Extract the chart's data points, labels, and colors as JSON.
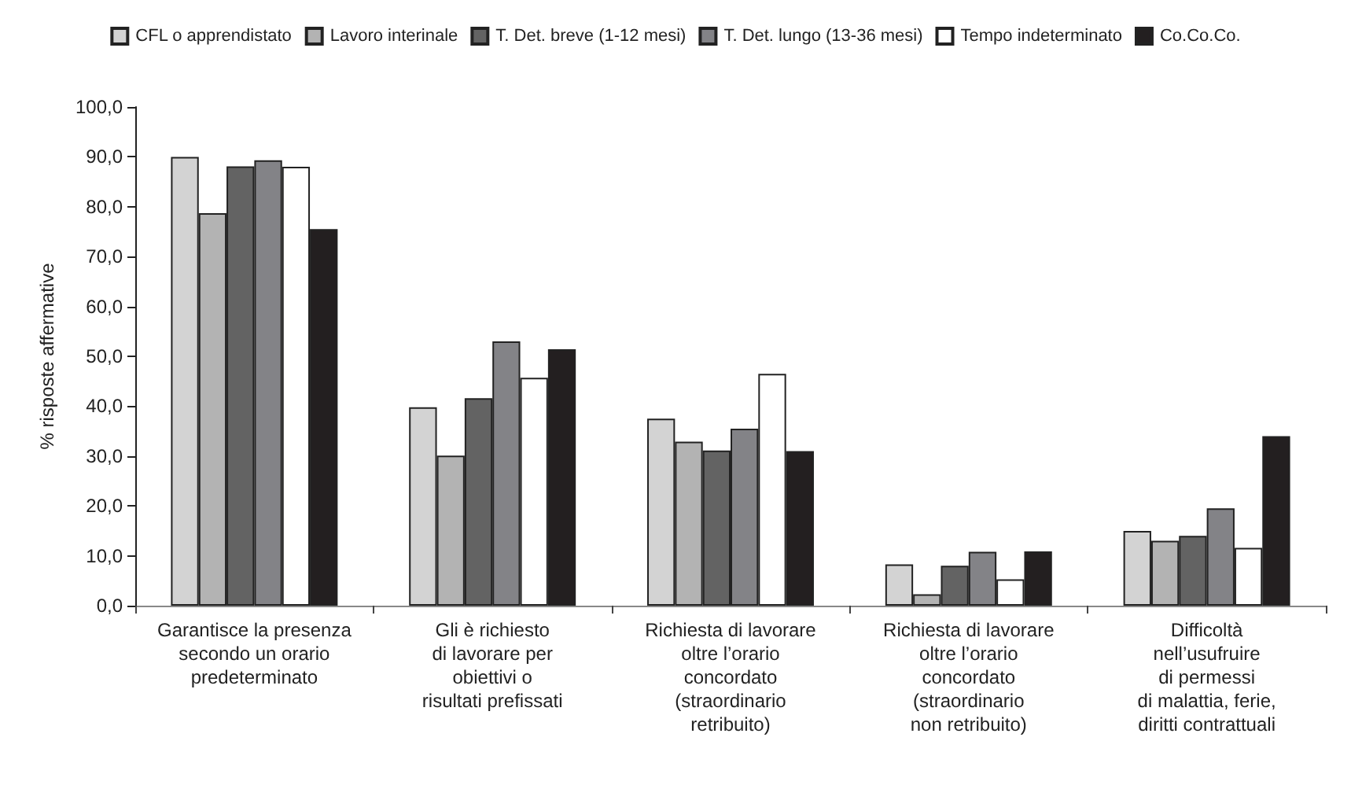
{
  "chart_data": {
    "type": "bar",
    "ylabel": "% risposte affermative",
    "categories": [
      "Garantisce la presenza\nsecondo un orario\npredeterminato",
      "Gli è richiesto\ndi lavorare per\nobiettivi o\nrisultati prefissati",
      "Richiesta di lavorare\noltre l’orario\nconcordato\n(straordinario\nretribuito)",
      "Richiesta di lavorare\noltre l’orario\nconcordato\n(straordinario\nnon retribuito)",
      "Difficoltà\nnell’usufruire\ndi permessi\ndi malattia, ferie,\ndiritti contrattuali"
    ],
    "series": [
      {
        "name": "CFL o apprendistato",
        "color": "#d3d3d3",
        "values": [
          90.0,
          39.8,
          37.5,
          8.3,
          15.0
        ]
      },
      {
        "name": "Lavoro interinale",
        "color": "#b3b3b3",
        "values": [
          78.7,
          30.1,
          32.9,
          2.3,
          13.0
        ]
      },
      {
        "name": "T. Det. breve (1-12 mesi)",
        "color": "#636363",
        "values": [
          88.1,
          41.6,
          31.1,
          8.0,
          14.0
        ]
      },
      {
        "name": "T. Det. lungo (13-36 mesi)",
        "color": "#838387",
        "values": [
          89.3,
          53.0,
          35.5,
          10.8,
          19.5
        ]
      },
      {
        "name": "Tempo indeterminato",
        "color": "#ffffff",
        "values": [
          88.0,
          45.7,
          46.5,
          5.3,
          11.6
        ]
      },
      {
        "name": "Co.Co.Co.",
        "color": "#231f20",
        "values": [
          75.5,
          51.4,
          31.0,
          10.9,
          34.0
        ]
      }
    ],
    "ylim": [
      0,
      100
    ],
    "yticks": [
      {
        "value": 0,
        "label": "0,0"
      },
      {
        "value": 10,
        "label": "10,0"
      },
      {
        "value": 20,
        "label": "20,0"
      },
      {
        "value": 30,
        "label": "30,0"
      },
      {
        "value": 40,
        "label": "40,0"
      },
      {
        "value": 50,
        "label": "50,0"
      },
      {
        "value": 60,
        "label": "60,0"
      },
      {
        "value": 70,
        "label": "70,0"
      },
      {
        "value": 80,
        "label": "80,0"
      },
      {
        "value": 90,
        "label": "90,0"
      },
      {
        "value": 100,
        "label": "100,0"
      }
    ],
    "grid": false,
    "legend": "top"
  }
}
